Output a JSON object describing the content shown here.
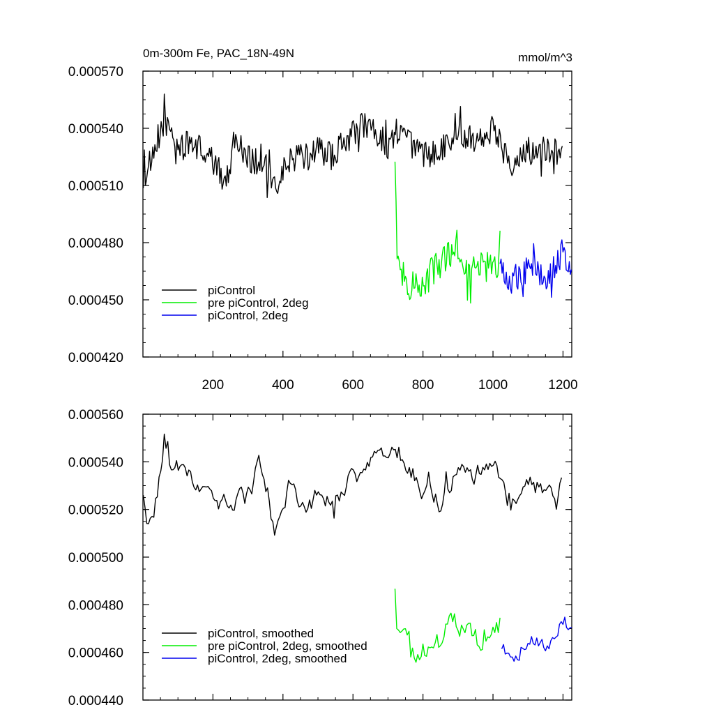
{
  "chart_data": [
    {
      "type": "line",
      "title": "0m-300m Fe, PAC_18N-49N",
      "units": "mmol/m^3",
      "xlabel": "",
      "ylabel": "",
      "xlim": [
        0,
        1225
      ],
      "ylim": [
        0.00042,
        0.00057
      ],
      "xticks": [
        200,
        400,
        600,
        800,
        1000,
        1200
      ],
      "xtick_labels": [
        "200",
        "400",
        "600",
        "800",
        "1000",
        "1200"
      ],
      "yticks": [
        0.00042,
        0.00045,
        0.00048,
        0.00051,
        0.00054,
        0.00057
      ],
      "ytick_labels": [
        "0.000420",
        "0.000450",
        "0.000480",
        "0.000510",
        "0.000540",
        "0.000570"
      ],
      "legend_position": "bottom-left",
      "series": [
        {
          "name": "piControl",
          "color": "#000000",
          "x_start": 1,
          "x_end": 1200,
          "noise": 7.5e-06,
          "anchors": [
            [
              1,
              0.000515
            ],
            [
              40,
              0.000527
            ],
            [
              60,
              0.000545
            ],
            [
              100,
              0.00053
            ],
            [
              150,
              0.000532
            ],
            [
              200,
              0.000522
            ],
            [
              240,
              0.000512
            ],
            [
              260,
              0.000535
            ],
            [
              300,
              0.000525
            ],
            [
              350,
              0.00052
            ],
            [
              375,
              0.000507
            ],
            [
              420,
              0.000524
            ],
            [
              470,
              0.000525
            ],
            [
              500,
              0.00053
            ],
            [
              540,
              0.000525
            ],
            [
              600,
              0.000538
            ],
            [
              650,
              0.000543
            ],
            [
              700,
              0.00053
            ],
            [
              730,
              0.00054
            ],
            [
              800,
              0.000525
            ],
            [
              850,
              0.00053
            ],
            [
              900,
              0.000538
            ],
            [
              950,
              0.000535
            ],
            [
              1000,
              0.00054
            ],
            [
              1050,
              0.000522
            ],
            [
              1100,
              0.000528
            ],
            [
              1150,
              0.00053
            ],
            [
              1200,
              0.000526
            ]
          ]
        },
        {
          "name": "pre piControl, 2deg",
          "color": "#00ee00",
          "x_start": 720,
          "x_end": 1020,
          "noise": 8.5e-06,
          "anchors": [
            [
              720,
              0.000525
            ],
            [
              727,
              0.00047
            ],
            [
              760,
              0.000455
            ],
            [
              800,
              0.00046
            ],
            [
              850,
              0.000468
            ],
            [
              890,
              0.000478
            ],
            [
              930,
              0.000465
            ],
            [
              980,
              0.000468
            ],
            [
              1020,
              0.00047
            ]
          ]
        },
        {
          "name": "piControl, 2deg",
          "color": "#0000ee",
          "x_start": 1020,
          "x_end": 1225,
          "noise": 7.5e-06,
          "anchors": [
            [
              1020,
              0.000468
            ],
            [
              1050,
              0.000458
            ],
            [
              1100,
              0.00047
            ],
            [
              1150,
              0.000462
            ],
            [
              1200,
              0.000475
            ],
            [
              1225,
              0.000465
            ]
          ]
        }
      ]
    },
    {
      "type": "line",
      "title": "",
      "xlabel": "",
      "ylabel": "",
      "xlim": [
        0,
        1225
      ],
      "ylim": [
        0.00044,
        0.00056
      ],
      "xticks": [
        200,
        400,
        600,
        800,
        1000,
        1200
      ],
      "yticks": [
        0.00044,
        0.00046,
        0.00048,
        0.0005,
        0.00052,
        0.00054,
        0.00056
      ],
      "ytick_labels": [
        "0.000440",
        "0.000460",
        "0.000480",
        "0.000500",
        "0.000520",
        "0.000540",
        "0.000560"
      ],
      "legend_position": "bottom-left",
      "series": [
        {
          "name": "piControl, smoothed",
          "color": "#000000",
          "x_start": 1,
          "x_end": 1200,
          "noise": 5.5e-06,
          "anchors": [
            [
              1,
              0.000523
            ],
            [
              15,
              0.00051
            ],
            [
              40,
              0.000525
            ],
            [
              60,
              0.000545
            ],
            [
              100,
              0.000532
            ],
            [
              150,
              0.000533
            ],
            [
              200,
              0.000525
            ],
            [
              250,
              0.00052
            ],
            [
              300,
              0.000525
            ],
            [
              330,
              0.000538
            ],
            [
              375,
              0.00051
            ],
            [
              420,
              0.00053
            ],
            [
              470,
              0.000522
            ],
            [
              500,
              0.000525
            ],
            [
              550,
              0.000525
            ],
            [
              600,
              0.000535
            ],
            [
              650,
              0.000538
            ],
            [
              700,
              0.00054
            ],
            [
              730,
              0.000545
            ],
            [
              800,
              0.000528
            ],
            [
              850,
              0.000522
            ],
            [
              900,
              0.000535
            ],
            [
              950,
              0.000535
            ],
            [
              1000,
              0.00054
            ],
            [
              1050,
              0.000522
            ],
            [
              1100,
              0.00053
            ],
            [
              1150,
              0.00053
            ],
            [
              1200,
              0.00053
            ]
          ]
        },
        {
          "name": "pre piControl, 2deg, smoothed",
          "color": "#00ee00",
          "x_start": 720,
          "x_end": 1020,
          "noise": 6.5e-06,
          "anchors": [
            [
              720,
              0.000483
            ],
            [
              725,
              0.00047
            ],
            [
              760,
              0.000458
            ],
            [
              800,
              0.000463
            ],
            [
              850,
              0.000462
            ],
            [
              890,
              0.000475
            ],
            [
              930,
              0.000468
            ],
            [
              980,
              0.000462
            ],
            [
              1020,
              0.000472
            ]
          ]
        },
        {
          "name": "piControl, 2deg, smoothed",
          "color": "#0000ee",
          "x_start": 1025,
          "x_end": 1225,
          "noise": 4.5e-06,
          "anchors": [
            [
              1025,
              0.000463
            ],
            [
              1050,
              0.000455
            ],
            [
              1100,
              0.000465
            ],
            [
              1150,
              0.000462
            ],
            [
              1200,
              0.000474
            ],
            [
              1225,
              0.00047
            ]
          ]
        }
      ]
    }
  ]
}
